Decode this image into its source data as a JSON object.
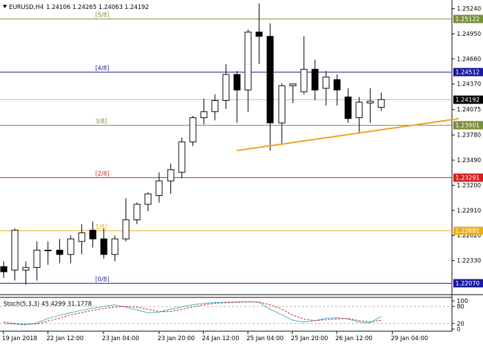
{
  "header": {
    "symbol": "EURUSD,H4",
    "ohlc": "1.24106 1.24265 1.24063 1.24192"
  },
  "chart_data": {
    "type": "candlestick",
    "ylim": [
      1.2196,
      1.2534
    ],
    "price_ticks": [
      "1.25240",
      "1.24950",
      "1.24660",
      "1.24370",
      "1.24075",
      "1.23780",
      "1.23490",
      "1.23200",
      "1.22910",
      "1.22620",
      "1.22330"
    ],
    "price_tick_values": [
      1.2524,
      1.2495,
      1.2466,
      1.2437,
      1.24075,
      1.2378,
      1.2349,
      1.232,
      1.2291,
      1.2262,
      1.2233
    ],
    "time_labels": [
      "19 Jan 2018",
      "22 Jan 12:00",
      "23 Jan 04:00",
      "23 Jan 20:00",
      "24 Jan 12:00",
      "25 Jan 04:00",
      "25 Jan 20:00",
      "26 Jan 12:00",
      "29 Jan 04:00"
    ],
    "time_label_bars": [
      0,
      4,
      9,
      14,
      18,
      22,
      26,
      30,
      35
    ],
    "candles": [
      {
        "o": 1.2226,
        "h": 1.2232,
        "l": 1.2213,
        "c": 1.222
      },
      {
        "o": 1.2222,
        "h": 1.227,
        "l": 1.221,
        "c": 1.2268
      },
      {
        "o": 1.2222,
        "h": 1.2232,
        "l": 1.2205,
        "c": 1.2225
      },
      {
        "o": 1.2225,
        "h": 1.2255,
        "l": 1.221,
        "c": 1.2245
      },
      {
        "o": 1.2245,
        "h": 1.2255,
        "l": 1.2228,
        "c": 1.2245
      },
      {
        "o": 1.2245,
        "h": 1.2258,
        "l": 1.223,
        "c": 1.224
      },
      {
        "o": 1.224,
        "h": 1.2262,
        "l": 1.223,
        "c": 1.2258
      },
      {
        "o": 1.2255,
        "h": 1.2275,
        "l": 1.224,
        "c": 1.2265
      },
      {
        "o": 1.2268,
        "h": 1.2278,
        "l": 1.2248,
        "c": 1.2258
      },
      {
        "o": 1.2258,
        "h": 1.227,
        "l": 1.2235,
        "c": 1.224
      },
      {
        "o": 1.224,
        "h": 1.2262,
        "l": 1.2232,
        "c": 1.2258
      },
      {
        "o": 1.2258,
        "h": 1.2305,
        "l": 1.2255,
        "c": 1.228
      },
      {
        "o": 1.228,
        "h": 1.23,
        "l": 1.2275,
        "c": 1.2298
      },
      {
        "o": 1.2298,
        "h": 1.2312,
        "l": 1.229,
        "c": 1.231
      },
      {
        "o": 1.2308,
        "h": 1.2335,
        "l": 1.23,
        "c": 1.2325
      },
      {
        "o": 1.2325,
        "h": 1.2345,
        "l": 1.231,
        "c": 1.2338
      },
      {
        "o": 1.2335,
        "h": 1.2375,
        "l": 1.2328,
        "c": 1.237
      },
      {
        "o": 1.237,
        "h": 1.24,
        "l": 1.2365,
        "c": 1.2398
      },
      {
        "o": 1.2398,
        "h": 1.242,
        "l": 1.239,
        "c": 1.2405
      },
      {
        "o": 1.2405,
        "h": 1.2425,
        "l": 1.2395,
        "c": 1.2418
      },
      {
        "o": 1.2418,
        "h": 1.246,
        "l": 1.2408,
        "c": 1.2448
      },
      {
        "o": 1.2448,
        "h": 1.2452,
        "l": 1.2392,
        "c": 1.243
      },
      {
        "o": 1.243,
        "h": 1.25,
        "l": 1.2405,
        "c": 1.2497
      },
      {
        "o": 1.2497,
        "h": 1.253,
        "l": 1.246,
        "c": 1.2492
      },
      {
        "o": 1.2492,
        "h": 1.2507,
        "l": 1.236,
        "c": 1.2392
      },
      {
        "o": 1.2392,
        "h": 1.2438,
        "l": 1.2368,
        "c": 1.2435
      },
      {
        "o": 1.2435,
        "h": 1.2437,
        "l": 1.2415,
        "c": 1.2437
      },
      {
        "o": 1.2428,
        "h": 1.2492,
        "l": 1.2425,
        "c": 1.2454
      },
      {
        "o": 1.2454,
        "h": 1.2465,
        "l": 1.2418,
        "c": 1.243
      },
      {
        "o": 1.2432,
        "h": 1.2452,
        "l": 1.2412,
        "c": 1.2445
      },
      {
        "o": 1.2442,
        "h": 1.2448,
        "l": 1.2412,
        "c": 1.243
      },
      {
        "o": 1.2422,
        "h": 1.2432,
        "l": 1.2392,
        "c": 1.2397
      },
      {
        "o": 1.2398,
        "h": 1.2422,
        "l": 1.238,
        "c": 1.2416
      },
      {
        "o": 1.2415,
        "h": 1.2432,
        "l": 1.2392,
        "c": 1.2417
      },
      {
        "o": 1.241,
        "h": 1.2427,
        "l": 1.2406,
        "c": 1.2419
      }
    ],
    "levels": [
      {
        "label": "[5/8]",
        "price": 1.25122,
        "badge": "1.25122",
        "color": "#7a8f3a"
      },
      {
        "label": "[4/8]",
        "price": 1.24512,
        "badge": "1.24512",
        "color": "#1a1aa0"
      },
      {
        "label": "3/8]",
        "price": 1.23901,
        "badge": "1.23901",
        "color": "#7a8f3a"
      },
      {
        "label": "[2/8]",
        "price": 1.23291,
        "badge": "1.23291",
        "color": "#d42020"
      },
      {
        "label": "1/8]",
        "price": 1.22681,
        "badge": "1.22681",
        "color": "#e8b020"
      },
      {
        "label": "[0/8]",
        "price": 1.2207,
        "badge": "1.22070",
        "color": "#1a1aa0"
      }
    ],
    "current_price": {
      "price": 1.24192,
      "badge": "1.24192"
    },
    "trendline": {
      "from": {
        "bar": 21,
        "price": 1.236
      },
      "to": {
        "bar": 41,
        "price": 1.2397
      },
      "color": "#f0a020"
    },
    "stochastic": {
      "label": "Stoch(5,3,3) 45.4299 31.1778",
      "ylim": [
        0,
        100
      ],
      "ticks": [
        "100",
        "80",
        "20",
        "0"
      ],
      "tick_values": [
        100,
        80,
        20,
        0
      ],
      "main": [
        20,
        18,
        15,
        22,
        38,
        48,
        58,
        66,
        73,
        80,
        86,
        78,
        68,
        58,
        60,
        70,
        78,
        86,
        91,
        94,
        95,
        96,
        97,
        95,
        70,
        52,
        32,
        25,
        30,
        38,
        40,
        36,
        25,
        22,
        45
      ],
      "signal": [
        25,
        20,
        18,
        18,
        28,
        38,
        50,
        58,
        66,
        72,
        78,
        80,
        78,
        70,
        62,
        62,
        70,
        78,
        86,
        91,
        93,
        95,
        96,
        96,
        86,
        72,
        50,
        36,
        30,
        33,
        36,
        38,
        30,
        26,
        31
      ]
    }
  }
}
